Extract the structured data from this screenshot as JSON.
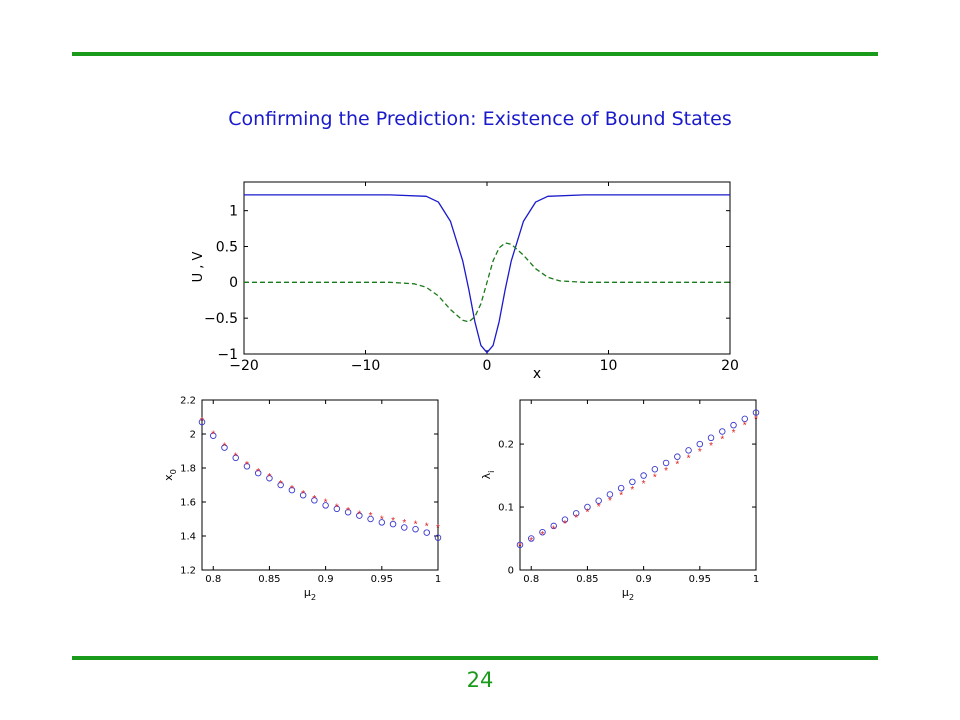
{
  "slide": {
    "title": "Confirming the Prediction:  Existence of Bound States",
    "page_number": "24",
    "colors": {
      "rule": "#1a9a1a",
      "title": "#1a1acc",
      "page_number": "#1a9a1a"
    }
  },
  "chart_data": [
    {
      "id": "uv",
      "type": "line",
      "xlabel": "x",
      "ylabel": "U , V",
      "xlim": [
        -20,
        20
      ],
      "ylim": [
        -1,
        1.4
      ],
      "xticks": [
        -20,
        -10,
        0,
        10,
        20
      ],
      "xticklabels": [
        "−20",
        "−10",
        "0",
        "10",
        "20"
      ],
      "yticks": [
        -1,
        -0.5,
        0,
        0.5,
        1
      ],
      "yticklabels": [
        "−1",
        "−0.5",
        "0",
        "0.5",
        "1"
      ],
      "grid": false,
      "series": [
        {
          "style": "solid",
          "color": "#1a1acc",
          "x": [
            -20,
            -8,
            -5,
            -4,
            -3,
            -2,
            -1.5,
            -1,
            -0.5,
            0,
            0.5,
            1,
            1.5,
            2,
            3,
            4,
            5,
            8,
            20
          ],
          "y": [
            1.22,
            1.22,
            1.2,
            1.12,
            0.85,
            0.3,
            -0.1,
            -0.55,
            -0.88,
            -0.98,
            -0.88,
            -0.55,
            -0.1,
            0.3,
            0.85,
            1.12,
            1.2,
            1.22,
            1.22
          ]
        },
        {
          "style": "dashed",
          "color": "#1a7a1a",
          "x": [
            -20,
            -8,
            -6,
            -5,
            -4,
            -3,
            -2,
            -1.5,
            -1,
            -0.5,
            0,
            0.5,
            1,
            1.5,
            2,
            3,
            4,
            5,
            6,
            8,
            20
          ],
          "y": [
            0,
            0,
            -0.02,
            -0.07,
            -0.19,
            -0.38,
            -0.53,
            -0.55,
            -0.48,
            -0.3,
            0,
            0.3,
            0.48,
            0.55,
            0.53,
            0.38,
            0.19,
            0.07,
            0.02,
            0,
            0
          ]
        }
      ]
    },
    {
      "id": "x0",
      "type": "scatter",
      "xlabel": "μ",
      "xlabel_subscript": "2",
      "ylabel": "x",
      "ylabel_subscript": "0",
      "xlim": [
        0.79,
        1.0
      ],
      "ylim": [
        1.2,
        2.2
      ],
      "xticks": [
        0.8,
        0.85,
        0.9,
        0.95,
        1
      ],
      "xticklabels": [
        "0.8",
        "0.85",
        "0.9",
        "0.95",
        "1"
      ],
      "yticks": [
        1.2,
        1.4,
        1.6,
        1.8,
        2,
        2.2
      ],
      "yticklabels": [
        "1.2",
        "1.4",
        "1.6",
        "1.8",
        "2",
        "2.2"
      ],
      "grid": false,
      "x": [
        0.79,
        0.8,
        0.81,
        0.82,
        0.83,
        0.84,
        0.85,
        0.86,
        0.87,
        0.88,
        0.89,
        0.9,
        0.91,
        0.92,
        0.93,
        0.94,
        0.95,
        0.96,
        0.97,
        0.98,
        0.99,
        1.0
      ],
      "series": [
        {
          "marker": "circle",
          "color": "#3a3ad0",
          "values": [
            2.07,
            1.99,
            1.92,
            1.86,
            1.81,
            1.77,
            1.74,
            1.7,
            1.67,
            1.64,
            1.61,
            1.58,
            1.56,
            1.54,
            1.52,
            1.5,
            1.48,
            1.47,
            1.45,
            1.44,
            1.42,
            1.39
          ]
        },
        {
          "marker": "star",
          "color": "#e02020",
          "values": [
            2.08,
            2.0,
            1.93,
            1.87,
            1.82,
            1.78,
            1.75,
            1.71,
            1.68,
            1.65,
            1.62,
            1.6,
            1.57,
            1.55,
            1.53,
            1.52,
            1.5,
            1.49,
            1.48,
            1.47,
            1.46,
            1.45
          ]
        }
      ]
    },
    {
      "id": "lambda",
      "type": "scatter",
      "xlabel": "μ",
      "xlabel_subscript": "2",
      "ylabel": "λ",
      "ylabel_subscript": "i",
      "xlim": [
        0.79,
        1.0
      ],
      "ylim": [
        0,
        0.27
      ],
      "xticks": [
        0.8,
        0.85,
        0.9,
        0.95,
        1
      ],
      "xticklabels": [
        "0.8",
        "0.85",
        "0.9",
        "0.95",
        "1"
      ],
      "yticks": [
        0,
        0.1,
        0.2
      ],
      "yticklabels": [
        "0",
        "0.1",
        "0.2"
      ],
      "grid": false,
      "x": [
        0.79,
        0.8,
        0.81,
        0.82,
        0.83,
        0.84,
        0.85,
        0.86,
        0.87,
        0.88,
        0.89,
        0.9,
        0.91,
        0.92,
        0.93,
        0.94,
        0.95,
        0.96,
        0.97,
        0.98,
        0.99,
        1.0
      ],
      "series": [
        {
          "marker": "circle",
          "color": "#3a3ad0",
          "values": [
            0.04,
            0.05,
            0.06,
            0.07,
            0.08,
            0.09,
            0.1,
            0.11,
            0.12,
            0.13,
            0.14,
            0.15,
            0.16,
            0.17,
            0.18,
            0.19,
            0.2,
            0.21,
            0.22,
            0.23,
            0.24,
            0.25
          ]
        },
        {
          "marker": "star",
          "color": "#e02020",
          "values": [
            0.038,
            0.047,
            0.056,
            0.065,
            0.074,
            0.083,
            0.092,
            0.101,
            0.11,
            0.119,
            0.128,
            0.137,
            0.148,
            0.158,
            0.168,
            0.178,
            0.188,
            0.198,
            0.208,
            0.218,
            0.23,
            0.24
          ]
        }
      ]
    }
  ]
}
